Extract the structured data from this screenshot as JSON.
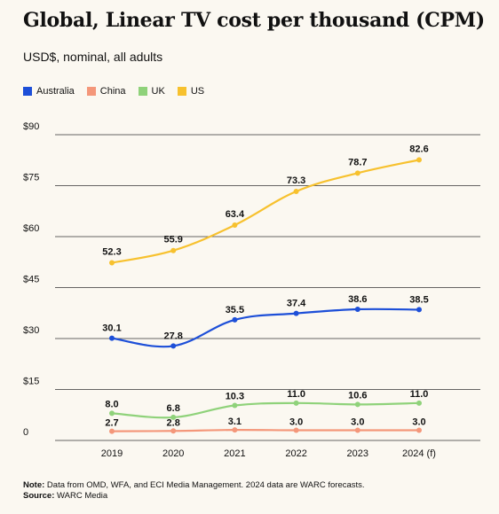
{
  "title": "Global, Linear TV cost per thousand (CPM)",
  "subtitle": "USD$, nominal, all adults",
  "colors": {
    "Australia": "#1d4fd8",
    "China": "#f4977a",
    "UK": "#8fd27a",
    "US": "#f7c12e",
    "grid": "#333333",
    "background": "#fbf8f1"
  },
  "chart_data": {
    "type": "line",
    "categories": [
      "2019",
      "2020",
      "2021",
      "2022",
      "2023",
      "2024 (f)"
    ],
    "series": [
      {
        "name": "Australia",
        "values": [
          30.1,
          27.8,
          35.5,
          37.4,
          38.6,
          38.5
        ]
      },
      {
        "name": "China",
        "values": [
          2.7,
          2.8,
          3.1,
          3.0,
          3.0,
          3.0
        ]
      },
      {
        "name": "UK",
        "values": [
          8.0,
          6.8,
          10.3,
          11.0,
          10.6,
          11.0
        ]
      },
      {
        "name": "US",
        "values": [
          52.3,
          55.9,
          63.4,
          73.3,
          78.7,
          82.6
        ]
      }
    ],
    "y_ticks": [
      "0",
      "$15",
      "$30",
      "$45",
      "$60",
      "$75",
      "$90"
    ],
    "ylim": [
      0,
      90
    ],
    "grid": true,
    "legend": "top-left"
  },
  "footer": {
    "note_label": "Note:",
    "note_text": "Data from OMD, WFA, and ECI Media Management. 2024 data are WARC forecasts.",
    "source_label": "Source:",
    "source_text": "WARC Media"
  }
}
